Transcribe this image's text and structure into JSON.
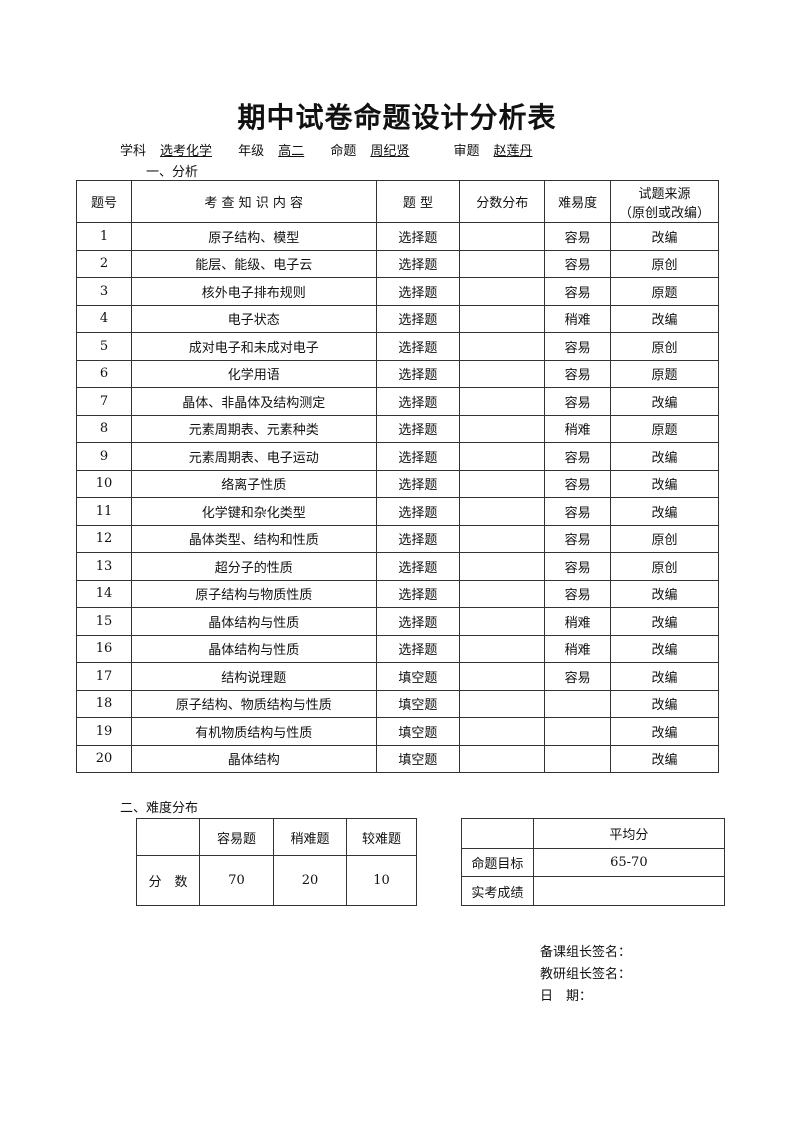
{
  "title": "期中试卷命题设计分析表",
  "meta": {
    "subject_label": "学科",
    "subject": "选考化学",
    "grade_label": "年级",
    "grade": "高二",
    "author_label": "命题",
    "author": "周纪贤",
    "reviewer_label": "审题",
    "reviewer": "赵莲丹"
  },
  "section1": "一、分析",
  "main_table": {
    "headers": [
      "题号",
      "考 查 知 识 内 容",
      "题 型",
      "分数分布",
      "难易度",
      "试题来源\n（原创或改编）"
    ],
    "rows": [
      [
        "1",
        "原子结构、模型",
        "选择题",
        "",
        "容易",
        "改编"
      ],
      [
        "2",
        "能层、能级、电子云",
        "选择题",
        "",
        "容易",
        "原创"
      ],
      [
        "3",
        "核外电子排布规则",
        "选择题",
        "",
        "容易",
        "原题"
      ],
      [
        "4",
        "电子状态",
        "选择题",
        "",
        "稍难",
        "改编"
      ],
      [
        "5",
        "成对电子和未成对电子",
        "选择题",
        "",
        "容易",
        "原创"
      ],
      [
        "6",
        "化学用语",
        "选择题",
        "",
        "容易",
        "原题"
      ],
      [
        "7",
        "晶体、非晶体及结构测定",
        "选择题",
        "",
        "容易",
        "改编"
      ],
      [
        "8",
        "元素周期表、元素种类",
        "选择题",
        "",
        "稍难",
        "原题"
      ],
      [
        "9",
        "元素周期表、电子运动",
        "选择题",
        "",
        "容易",
        "改编"
      ],
      [
        "10",
        "络离子性质",
        "选择题",
        "",
        "容易",
        "改编"
      ],
      [
        "11",
        "化学键和杂化类型",
        "选择题",
        "",
        "容易",
        "改编"
      ],
      [
        "12",
        "晶体类型、结构和性质",
        "选择题",
        "",
        "容易",
        "原创"
      ],
      [
        "13",
        "超分子的性质",
        "选择题",
        "",
        "容易",
        "原创"
      ],
      [
        "14",
        "原子结构与物质性质",
        "选择题",
        "",
        "容易",
        "改编"
      ],
      [
        "15",
        "晶体结构与性质",
        "选择题",
        "",
        "稍难",
        "改编"
      ],
      [
        "16",
        "晶体结构与性质",
        "选择题",
        "",
        "稍难",
        "改编"
      ],
      [
        "17",
        "结构说理题",
        "填空题",
        "",
        "容易",
        "改编"
      ],
      [
        "18",
        "原子结构、物质结构与性质",
        "填空题",
        "",
        "",
        "改编"
      ],
      [
        "19",
        "有机物质结构与性质",
        "填空题",
        "",
        "",
        "改编"
      ],
      [
        "20",
        "晶体结构",
        "填空题",
        "",
        "",
        "改编"
      ]
    ]
  },
  "section2": "二、难度分布",
  "difficulty_table": {
    "headers": [
      "",
      "容易题",
      "稍难题",
      "较难题"
    ],
    "row_label": "分　数",
    "values": [
      "70",
      "20",
      "10"
    ]
  },
  "score_table": {
    "header": "平均分",
    "rows": [
      {
        "label": "命题目标",
        "value": "65-70"
      },
      {
        "label": "实考成绩",
        "value": ""
      }
    ]
  },
  "signatures": [
    "备课组长签名：",
    "教研组长签名：",
    "日　期："
  ]
}
